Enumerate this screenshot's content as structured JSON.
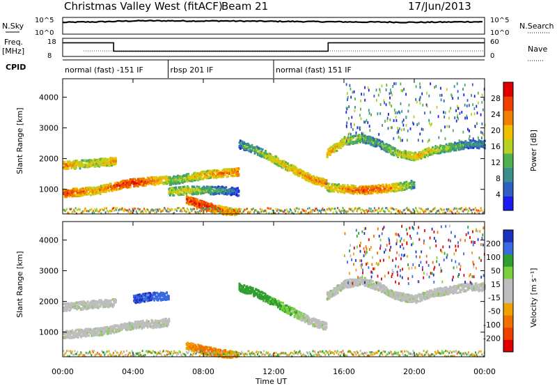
{
  "header": {
    "title": "Christmas Valley West (fitACF)",
    "beam": "Beam 21",
    "date": "17/Jun/2013"
  },
  "side_labels": {
    "nsky": "N.Sky",
    "nsearch": "N.Search",
    "freq": "Freq.",
    "freq_unit": "[MHz]",
    "nave": "Nave",
    "cpid": "CPID"
  },
  "axes": {
    "noise_left_ticks": [
      "10^5",
      "10^0"
    ],
    "noise_right_ticks": [
      "10^5",
      "10^0"
    ],
    "freq_left_ticks": [
      "18",
      "8"
    ],
    "freq_right_ticks": [
      "60",
      "0"
    ],
    "xlabel": "Time UT",
    "x_ticks": [
      "00:00",
      "04:00",
      "08:00",
      "12:00",
      "16:00",
      "20:00",
      "00:00"
    ],
    "power_ylabel": "Slant Range [km]",
    "velocity_ylabel": "Slant Range [km]",
    "range_ticks": [
      "1000",
      "2000",
      "3000",
      "4000"
    ]
  },
  "cpid_segments": [
    {
      "label": "normal (fast) -151 IF",
      "start_hour": 0.0,
      "end_hour": 6.0
    },
    {
      "label": "rbsp 201 IF",
      "start_hour": 6.0,
      "end_hour": 12.0
    },
    {
      "label": "normal (fast) 151 IF",
      "start_hour": 12.0,
      "end_hour": 24.0
    }
  ],
  "colors": {
    "power_scale": [
      "#1c1cf0",
      "#2f5fc0",
      "#3a8e8e",
      "#4fb04f",
      "#b8d020",
      "#f0c000",
      "#f08000",
      "#f04000",
      "#e00000"
    ],
    "velocity_scale": [
      "#1c30c0",
      "#3a6ae0",
      "#2f9f2f",
      "#7ad03a",
      "#bdbdbd",
      "#bdbdbd",
      "#f0a000",
      "#f07000",
      "#f04000",
      "#e00000"
    ]
  },
  "colorbars": {
    "power": {
      "label": "Power [dB]",
      "ticks": [
        "28",
        "24",
        "20",
        "16",
        "12",
        "8",
        "4"
      ]
    },
    "velocity": {
      "label": "Velocity [m s⁻¹]",
      "ticks": [
        "200",
        "100",
        "50",
        "15",
        "-15",
        "-50",
        "-100",
        "-200"
      ]
    }
  },
  "chart_data": [
    {
      "type": "line",
      "title": "N.Sky",
      "x_unit": "hour UT",
      "xlim": [
        0,
        24
      ],
      "log_y": true,
      "ylim": [
        1,
        100000
      ],
      "series": [
        {
          "name": "N.Sky",
          "x": [
            0,
            1,
            2,
            3,
            4,
            5,
            6,
            7,
            8,
            9,
            10,
            11,
            12,
            13,
            14,
            15,
            16,
            17,
            18,
            19,
            20,
            21,
            22,
            23,
            24
          ],
          "values": [
            5000,
            7000,
            8000,
            12000,
            18000,
            20000,
            19000,
            17000,
            16000,
            18000,
            15000,
            14000,
            12000,
            11000,
            10000,
            9000,
            8000,
            7000,
            7000,
            6000,
            5500,
            6000,
            7000,
            9000,
            8000
          ]
        }
      ]
    },
    {
      "type": "line",
      "title": "Freq.",
      "x_unit": "hour UT",
      "xlim": [
        0,
        24
      ],
      "ylim": [
        8,
        18
      ],
      "series": [
        {
          "name": "Freq.",
          "x": [
            0,
            2.9,
            2.9,
            15.1,
            15.1,
            24
          ],
          "values": [
            16,
            16,
            10.5,
            10.5,
            16,
            16
          ]
        }
      ]
    },
    {
      "type": "heatmap",
      "title": "Power [dB]",
      "xlabel": "Time UT",
      "ylabel": "Slant Range [km]",
      "xlim": [
        0,
        24
      ],
      "ylim": [
        200,
        4600
      ],
      "zlim": [
        0,
        30
      ],
      "bands": [
        {
          "hours": [
            0,
            1,
            2,
            3,
            4,
            5,
            6
          ],
          "range_km": [
            900,
            950,
            1000,
            1150,
            1250,
            1300,
            1350
          ],
          "power_db": [
            26,
            24,
            20,
            26,
            28,
            24,
            18
          ]
        },
        {
          "hours": [
            0,
            1,
            2,
            3
          ],
          "range_km": [
            1800,
            1850,
            1900,
            1950
          ],
          "power_db": [
            24,
            18,
            18,
            22
          ]
        },
        {
          "hours": [
            6,
            7,
            8,
            9,
            10
          ],
          "range_km": [
            1300,
            1400,
            1500,
            1550,
            1600
          ],
          "power_db": [
            14,
            16,
            20,
            22,
            24
          ]
        },
        {
          "hours": [
            6,
            7,
            8,
            9,
            10
          ],
          "range_km": [
            950,
            1000,
            1000,
            1000,
            950
          ],
          "power_db": [
            16,
            18,
            14,
            10,
            6
          ]
        },
        {
          "hours": [
            7,
            8,
            9,
            10
          ],
          "range_km": [
            700,
            500,
            350,
            250
          ],
          "power_db": [
            26,
            28,
            26,
            20
          ]
        },
        {
          "hours": [
            10,
            11,
            12,
            13,
            14,
            15
          ],
          "range_km": [
            2500,
            2300,
            2000,
            1700,
            1400,
            1200
          ],
          "power_db": [
            10,
            14,
            18,
            20,
            22,
            24
          ]
        },
        {
          "hours": [
            15,
            16,
            17,
            18,
            19,
            20
          ],
          "range_km": [
            1100,
            1050,
            1000,
            1050,
            1100,
            1200
          ],
          "power_db": [
            18,
            22,
            26,
            24,
            20,
            12
          ]
        },
        {
          "hours": [
            15,
            16,
            17,
            18,
            19,
            20,
            21,
            22,
            23,
            24
          ],
          "range_km": [
            2200,
            2600,
            2700,
            2500,
            2200,
            2100,
            2300,
            2400,
            2500,
            2500
          ],
          "power_db": [
            22,
            18,
            14,
            12,
            16,
            20,
            18,
            14,
            10,
            10
          ]
        }
      ]
    },
    {
      "type": "heatmap",
      "title": "Velocity [m s⁻¹]",
      "xlabel": "Time UT",
      "ylabel": "Slant Range [km]",
      "xlim": [
        0,
        24
      ],
      "ylim": [
        200,
        4600
      ],
      "zlim": [
        -200,
        200
      ],
      "bands": [
        {
          "hours": [
            0,
            1,
            2,
            3,
            4,
            5,
            6
          ],
          "range_km": [
            950,
            1000,
            1050,
            1150,
            1250,
            1300,
            1350
          ],
          "velocity_ms": [
            0,
            0,
            0,
            0,
            0,
            0,
            0
          ]
        },
        {
          "hours": [
            0,
            1,
            2,
            3
          ],
          "range_km": [
            1850,
            1900,
            1950,
            2000
          ],
          "velocity_ms": [
            0,
            0,
            0,
            0
          ]
        },
        {
          "hours": [
            4,
            5,
            6
          ],
          "range_km": [
            2100,
            2200,
            2200
          ],
          "velocity_ms": [
            150,
            150,
            120
          ]
        },
        {
          "hours": [
            7,
            8,
            9,
            10
          ],
          "range_km": [
            600,
            450,
            350,
            250
          ],
          "velocity_ms": [
            -40,
            -60,
            -50,
            -30
          ]
        },
        {
          "hours": [
            10,
            11,
            12,
            13,
            14,
            15
          ],
          "range_km": [
            2500,
            2300,
            2000,
            1700,
            1400,
            1200
          ],
          "velocity_ms": [
            40,
            40,
            30,
            20,
            0,
            0
          ]
        },
        {
          "hours": [
            15,
            16,
            17,
            18,
            19,
            20,
            21,
            22,
            23,
            24
          ],
          "range_km": [
            2200,
            2600,
            2700,
            2500,
            2200,
            2100,
            2300,
            2400,
            2500,
            2500
          ],
          "velocity_ms": [
            0,
            0,
            0,
            0,
            0,
            0,
            0,
            0,
            0,
            0
          ]
        }
      ]
    }
  ]
}
